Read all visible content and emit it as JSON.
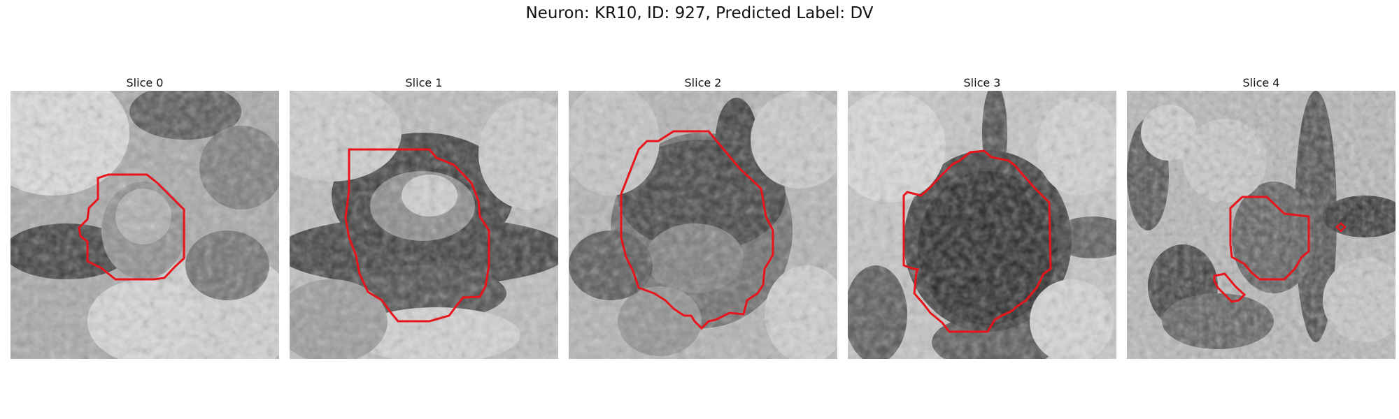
{
  "figure": {
    "title": "Neuron: KR10, ID: 927, Predicted Label: DV"
  },
  "contour_color": "#e8141c",
  "panels": [
    {
      "title": "Slice 0"
    },
    {
      "title": "Slice 1"
    },
    {
      "title": "Slice 2"
    },
    {
      "title": "Slice 3"
    },
    {
      "title": "Slice 4"
    }
  ]
}
